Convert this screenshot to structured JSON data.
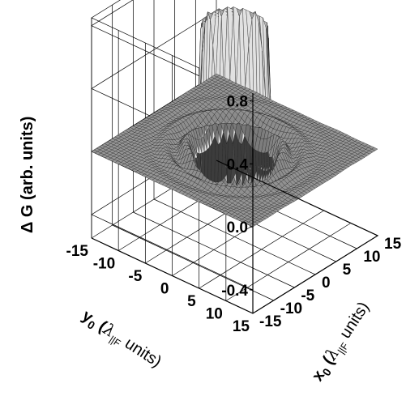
{
  "chart_data": {
    "type": "surface",
    "title": "",
    "zlabel": {
      "prefix": "Δ G ",
      "rest": "(arb. units)"
    },
    "xlabel": {
      "var": "x",
      "sub": "0",
      "open": " (",
      "lambda": "λ",
      "lsub": "||F",
      "rest": " units)"
    },
    "ylabel": {
      "var": "y",
      "sub": "0",
      "open": " (",
      "lambda": "λ",
      "lsub": "||F",
      "rest": " units)"
    },
    "xlim": [
      -15,
      15
    ],
    "ylim": [
      -15,
      15
    ],
    "zlim": [
      -0.55,
      0.85
    ],
    "x_ticks": [
      "-15",
      "-10",
      "-5",
      "0",
      "5",
      "10",
      "15"
    ],
    "y_ticks": [
      "-15",
      "-10",
      "-5",
      "0",
      "5",
      "10",
      "15"
    ],
    "z_ticks": [
      "-0.4",
      "0.0",
      "0.4",
      "0.8"
    ],
    "surface": {
      "description_values": "radially symmetric: flat plateau ~0.8 for r<5, sharp drop to ~-0.1 at r≈5.5, then damped ripples around 0.0 out to r=15",
      "plateau_height": 0.8,
      "plateau_radius": 5,
      "baseline": 0.0,
      "trough_min": -0.1
    },
    "grid": true
  }
}
